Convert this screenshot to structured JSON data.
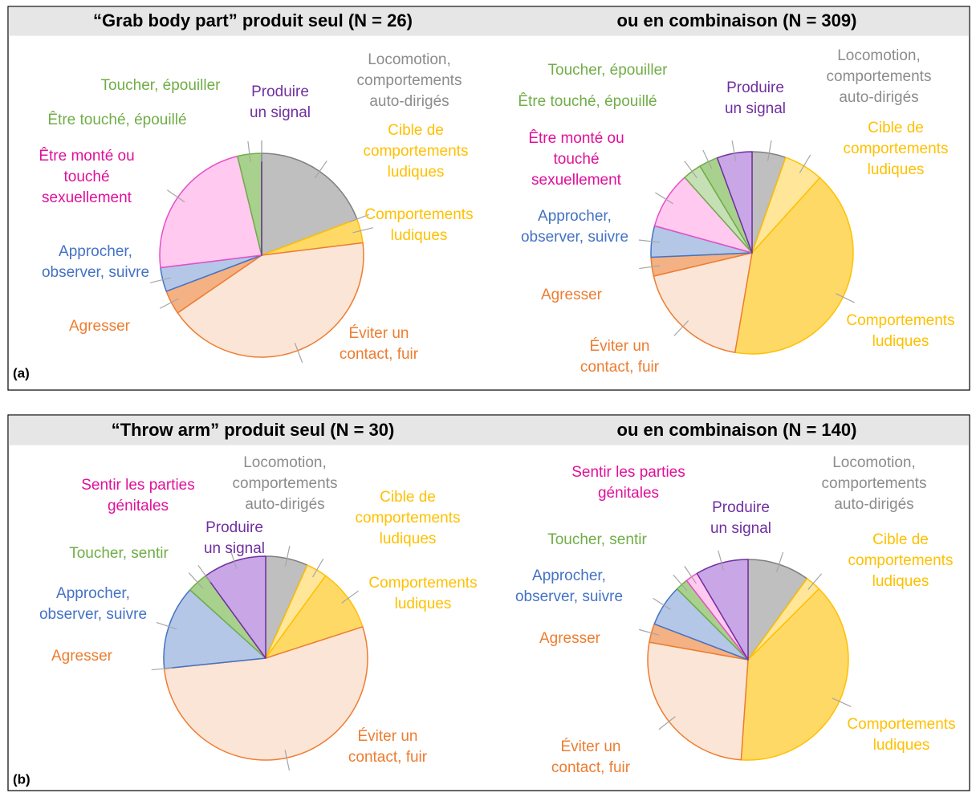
{
  "panel_labels": [
    "(a)",
    "(b)"
  ],
  "chart_data": [
    {
      "type": "pie",
      "title": "“Grab body part” produit seul (N = 26)",
      "categories": [
        [
          "Locomotion,",
          "comportements",
          "auto-dirigés"
        ],
        [
          "Cible de",
          "comportements",
          "ludiques"
        ],
        [
          "Comportements",
          "ludiques"
        ],
        [
          "Éviter un",
          "contact, fuir"
        ],
        [
          "Agresser"
        ],
        [
          "Approcher,",
          "observer, suivre"
        ],
        [
          "Être monté ou",
          "touché",
          "sexuellement"
        ],
        [
          "Être touché, épouillé"
        ],
        [
          "Toucher, épouiller"
        ],
        [
          "Produire",
          "un signal"
        ]
      ],
      "values": [
        19.2,
        0,
        3.8,
        42.3,
        3.8,
        3.8,
        23.1,
        3.8,
        0,
        0
      ],
      "colors": [
        "#bfbfbf",
        "#ffe699",
        "#ffd966",
        "#fbe5d6",
        "#f4b183",
        "#b4c7e7",
        "#ffc9f0",
        "#a9d18e",
        "#c5e0b4",
        "#c9a6e6"
      ],
      "edge_colors": [
        "#7f7f7f",
        "#ffc000",
        "#ffc000",
        "#ed7d31",
        "#ed7d31",
        "#4472c4",
        "#e64fc8",
        "#70ad47",
        "#70ad47",
        "#7030a0"
      ],
      "label_colors": [
        "#8c8c8c",
        "#ffc000",
        "#ffc000",
        "#ed7d31",
        "#ed7d31",
        "#4472c4",
        "#e0109a",
        "#70ad47",
        "#70ad47",
        "#7030a0"
      ]
    },
    {
      "type": "pie",
      "title": "ou en combinaison (N = 309)",
      "categories": [
        [
          "Locomotion,",
          "comportements",
          "auto-dirigés"
        ],
        [
          "Cible de",
          "comportements",
          "ludiques"
        ],
        [
          "Comportements",
          "ludiques"
        ],
        [
          "Éviter un",
          "contact, fuir"
        ],
        [
          "Agresser"
        ],
        [
          "Approcher,",
          "observer, suivre"
        ],
        [
          "Être monté ou",
          "touché",
          "sexuellement"
        ],
        [
          "Être touché, épouillé"
        ],
        [
          "Toucher, épouiller"
        ],
        [
          "Produire",
          "un signal"
        ]
      ],
      "values": [
        5.4,
        6.3,
        41,
        18.6,
        3,
        5,
        9.1,
        3,
        3,
        5.6
      ],
      "colors": [
        "#bfbfbf",
        "#ffe699",
        "#ffd966",
        "#fbe5d6",
        "#f4b183",
        "#b4c7e7",
        "#ffc9f0",
        "#c5e0b4",
        "#a9d18e",
        "#c9a6e6"
      ],
      "edge_colors": [
        "#7f7f7f",
        "#ffc000",
        "#ffc000",
        "#ed7d31",
        "#ed7d31",
        "#4472c4",
        "#e64fc8",
        "#70ad47",
        "#70ad47",
        "#7030a0"
      ],
      "label_colors": [
        "#8c8c8c",
        "#ffc000",
        "#ffc000",
        "#ed7d31",
        "#ed7d31",
        "#4472c4",
        "#e0109a",
        "#70ad47",
        "#70ad47",
        "#7030a0"
      ]
    },
    {
      "type": "pie",
      "title": "“Throw arm” produit seul (N = 30)",
      "categories": [
        [
          "Locomotion,",
          "comportements",
          "auto-dirigés"
        ],
        [
          "Cible de",
          "comportements",
          "ludiques"
        ],
        [
          "Comportements",
          "ludiques"
        ],
        [
          "Éviter un",
          "contact, fuir"
        ],
        [
          "Agresser"
        ],
        [
          "Approcher,",
          "observer, suivre"
        ],
        [
          "Toucher, sentir"
        ],
        [
          "Sentir les parties",
          "génitales"
        ],
        [
          "Produire",
          "un signal"
        ]
      ],
      "values": [
        6.7,
        3.3,
        10,
        53.3,
        0,
        13.3,
        3.3,
        0,
        10
      ],
      "colors": [
        "#bfbfbf",
        "#ffe699",
        "#ffd966",
        "#fbe5d6",
        "#f4b183",
        "#b4c7e7",
        "#a9d18e",
        "#ffc9f0",
        "#c9a6e6"
      ],
      "edge_colors": [
        "#7f7f7f",
        "#ffc000",
        "#ffc000",
        "#ed7d31",
        "#ed7d31",
        "#4472c4",
        "#70ad47",
        "#e64fc8",
        "#7030a0"
      ],
      "label_colors": [
        "#8c8c8c",
        "#ffc000",
        "#ffc000",
        "#ed7d31",
        "#ed7d31",
        "#4472c4",
        "#70ad47",
        "#e0109a",
        "#7030a0"
      ]
    },
    {
      "type": "pie",
      "title": "ou en combinaison (N = 140)",
      "categories": [
        [
          "Locomotion,",
          "comportements",
          "auto-dirigés"
        ],
        [
          "Cible de",
          "comportements",
          "ludiques"
        ],
        [
          "Comportements",
          "ludiques"
        ],
        [
          "Éviter un",
          "contact, fuir"
        ],
        [
          "Agresser"
        ],
        [
          "Approcher,",
          "observer, suivre"
        ],
        [
          "Toucher, sentir"
        ],
        [
          "Sentir les parties",
          "génitales"
        ],
        [
          "Produire",
          "un signal"
        ]
      ],
      "values": [
        10,
        2.5,
        38.6,
        26.7,
        3,
        6.7,
        2,
        2,
        8.5
      ],
      "colors": [
        "#bfbfbf",
        "#ffe699",
        "#ffd966",
        "#fbe5d6",
        "#f4b183",
        "#b4c7e7",
        "#a9d18e",
        "#ffc9f0",
        "#c9a6e6"
      ],
      "edge_colors": [
        "#7f7f7f",
        "#ffc000",
        "#ffc000",
        "#ed7d31",
        "#ed7d31",
        "#4472c4",
        "#70ad47",
        "#e64fc8",
        "#7030a0"
      ],
      "label_colors": [
        "#8c8c8c",
        "#ffc000",
        "#ffc000",
        "#ed7d31",
        "#ed7d31",
        "#4472c4",
        "#70ad47",
        "#e0109a",
        "#7030a0"
      ]
    }
  ]
}
